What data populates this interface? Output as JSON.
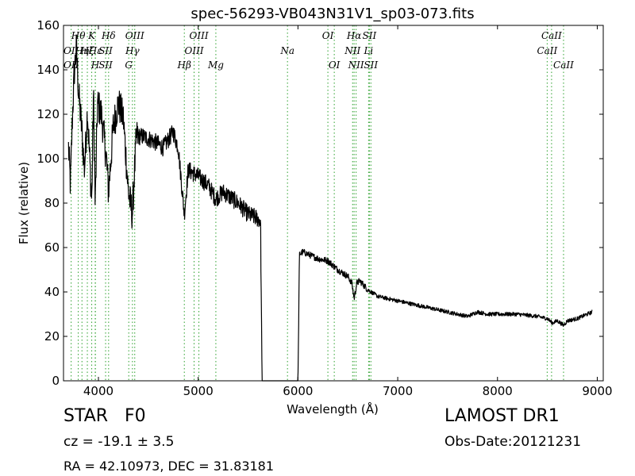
{
  "chart_data": {
    "type": "line",
    "title": "spec-56293-VB043N31V1_sp03-073.fits",
    "xlabel": "Wavelength (Å)",
    "ylabel": "Flux (relative)",
    "xlim": [
      3650,
      9060
    ],
    "ylim": [
      0,
      160
    ],
    "xticks": [
      4000,
      5000,
      6000,
      7000,
      8000,
      9000
    ],
    "yticks": [
      0,
      20,
      40,
      60,
      80,
      100,
      120,
      140,
      160
    ],
    "grid": false,
    "line_color": "#000000",
    "marker_line_color": "#2ca02c",
    "spectrum_keypoints": [
      [
        3700,
        105
      ],
      [
        3720,
        88
      ],
      [
        3740,
        120
      ],
      [
        3760,
        140
      ],
      [
        3780,
        150
      ],
      [
        3800,
        130
      ],
      [
        3830,
        115
      ],
      [
        3860,
        95
      ],
      [
        3890,
        122
      ],
      [
        3933,
        80
      ],
      [
        3950,
        130
      ],
      [
        3968,
        78
      ],
      [
        3990,
        125
      ],
      [
        4030,
        120
      ],
      [
        4080,
        100
      ],
      [
        4101,
        85
      ],
      [
        4150,
        115
      ],
      [
        4200,
        125
      ],
      [
        4250,
        118
      ],
      [
        4300,
        85
      ],
      [
        4340,
        75
      ],
      [
        4380,
        110
      ],
      [
        4450,
        110
      ],
      [
        4550,
        108
      ],
      [
        4650,
        105
      ],
      [
        4750,
        112
      ],
      [
        4800,
        105
      ],
      [
        4861,
        75
      ],
      [
        4900,
        95
      ],
      [
        5000,
        92
      ],
      [
        5100,
        88
      ],
      [
        5175,
        82
      ],
      [
        5250,
        85
      ],
      [
        5400,
        80
      ],
      [
        5500,
        75
      ],
      [
        5600,
        73
      ],
      [
        5625,
        72
      ],
      [
        5640,
        0
      ],
      [
        6000,
        0
      ],
      [
        6015,
        57
      ],
      [
        6050,
        58
      ],
      [
        6100,
        57
      ],
      [
        6200,
        55
      ],
      [
        6300,
        54
      ],
      [
        6400,
        50
      ],
      [
        6500,
        47
      ],
      [
        6540,
        44
      ],
      [
        6563,
        37
      ],
      [
        6590,
        44
      ],
      [
        6620,
        45
      ],
      [
        6700,
        41
      ],
      [
        6800,
        38
      ],
      [
        6900,
        37
      ],
      [
        7000,
        36
      ],
      [
        7200,
        34
      ],
      [
        7400,
        32
      ],
      [
        7600,
        30
      ],
      [
        7700,
        29
      ],
      [
        7800,
        31
      ],
      [
        7900,
        30
      ],
      [
        8000,
        30
      ],
      [
        8200,
        30
      ],
      [
        8400,
        29
      ],
      [
        8500,
        28
      ],
      [
        8550,
        26
      ],
      [
        8600,
        27
      ],
      [
        8662,
        25
      ],
      [
        8700,
        27
      ],
      [
        8800,
        28
      ],
      [
        8900,
        30
      ],
      [
        8950,
        31
      ]
    ],
    "spectral_lines": [
      {
        "wavelength": 3727,
        "label": "OII",
        "row": 1
      },
      {
        "wavelength": 3727,
        "label": "OII",
        "row": 2
      },
      {
        "wavelength": 3798,
        "label": "Hθ",
        "row": 0
      },
      {
        "wavelength": 3835,
        "label": "Hη",
        "row": 1
      },
      {
        "wavelength": 3889,
        "label": "Hζ",
        "row": 1
      },
      {
        "wavelength": 3933,
        "label": "K",
        "row": 0
      },
      {
        "wavelength": 3968,
        "label": "H",
        "row": 2
      },
      {
        "wavelength": 3970,
        "label": "Hε",
        "row": 1
      },
      {
        "wavelength": 4072,
        "label": "SII",
        "row": 1
      },
      {
        "wavelength": 4072,
        "label": "SII",
        "row": 2
      },
      {
        "wavelength": 4102,
        "label": "Hδ",
        "row": 0
      },
      {
        "wavelength": 4304,
        "label": "G",
        "row": 2
      },
      {
        "wavelength": 4341,
        "label": "Hγ",
        "row": 1
      },
      {
        "wavelength": 4364,
        "label": "OIII",
        "row": 0
      },
      {
        "wavelength": 4861,
        "label": "Hβ",
        "row": 2
      },
      {
        "wavelength": 4959,
        "label": "OIII",
        "row": 1
      },
      {
        "wavelength": 5007,
        "label": "OIII",
        "row": 0
      },
      {
        "wavelength": 5177,
        "label": "Mg",
        "row": 2
      },
      {
        "wavelength": 5895,
        "label": "Na",
        "row": 1
      },
      {
        "wavelength": 6300,
        "label": "OI",
        "row": 0
      },
      {
        "wavelength": 6364,
        "label": "OI",
        "row": 2
      },
      {
        "wavelength": 6548,
        "label": "NII",
        "row": 1
      },
      {
        "wavelength": 6563,
        "label": "Hα",
        "row": 0
      },
      {
        "wavelength": 6583,
        "label": "NII",
        "row": 2
      },
      {
        "wavelength": 6708,
        "label": "Li",
        "row": 1
      },
      {
        "wavelength": 6716,
        "label": "SII",
        "row": 0
      },
      {
        "wavelength": 6731,
        "label": "SII",
        "row": 2
      },
      {
        "wavelength": 8498,
        "label": "CaII",
        "row": 1
      },
      {
        "wavelength": 8542,
        "label": "CaII",
        "row": 0
      },
      {
        "wavelength": 8662,
        "label": "CaII",
        "row": 2
      }
    ]
  },
  "info": {
    "object_class": "STAR",
    "subclass": "F0",
    "redshift": "cz = -19.1 ± 3.5",
    "radec": "RA = 42.10973, DEC = 31.83181",
    "survey": "LAMOST DR1",
    "obs_date": "Obs-Date:20121231"
  }
}
